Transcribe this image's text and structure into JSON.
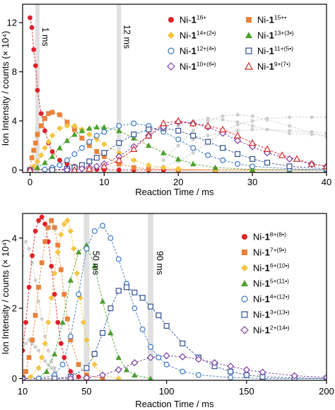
{
  "chart_data": [
    {
      "type": "scatter",
      "xlabel": "Reaction Time / ms",
      "ylabel": "Ion Intensity / counts (× 10⁴)",
      "xlim": [
        -1,
        40
      ],
      "ylim": [
        -0.2,
        13.5
      ],
      "xticks": [
        "0",
        "10",
        "20",
        "30",
        "40"
      ],
      "yticks": [
        "0",
        "4",
        "8",
        "12"
      ],
      "markers": [
        {
          "x": 1,
          "label": "1 ms"
        },
        {
          "x": 12,
          "label": "12 ms"
        }
      ],
      "legend_position": "top-right",
      "grey_series": {
        "name": "",
        "color": "#cfcfcf",
        "curves": [
          {
            "x": [
              16,
              18,
              20,
              22,
              24,
              26,
              28,
              30,
              32,
              35,
              38,
              40
            ],
            "y": [
              0.1,
              0.3,
              0.7,
              1.4,
              2.2,
              3.1,
              3.7,
              4.0,
              4.2,
              4.3,
              4.3,
              4.3
            ]
          },
          {
            "x": [
              18,
              20,
              22,
              24,
              26,
              28,
              30,
              32,
              35,
              38,
              40
            ],
            "y": [
              0.8,
              2.0,
              3.2,
              4.0,
              4.4,
              4.5,
              4.4,
              4.1,
              3.6,
              3.0,
              2.7
            ]
          },
          {
            "x": [
              20,
              22,
              24,
              26,
              28,
              30,
              32,
              35,
              38,
              40
            ],
            "y": [
              3.6,
              4.0,
              4.2,
              4.1,
              3.9,
              3.6,
              3.3,
              3.0,
              2.9,
              2.8
            ]
          },
          {
            "x": [
              22,
              24,
              26,
              28,
              30,
              32,
              35,
              38,
              40
            ],
            "y": [
              2.5,
              2.8,
              3.0,
              3.2,
              3.3,
              3.3,
              3.2,
              3.1,
              3.0
            ]
          }
        ]
      },
      "series": [
        {
          "name": "Ni-1",
          "charge": "16+",
          "color": "#e0202a",
          "marker": "circle",
          "filled": true,
          "x": [
            0,
            0.25,
            0.5,
            0.75,
            1,
            1.5,
            2,
            2.5,
            3,
            4,
            5,
            6,
            7,
            8,
            9,
            10,
            12,
            14,
            16,
            18,
            20,
            25,
            30,
            35,
            40
          ],
          "y": [
            12.4,
            11.6,
            9.8,
            8.5,
            6.5,
            4.6,
            3.2,
            2.2,
            1.5,
            0.8,
            0.5,
            0.3,
            0.2,
            0.1,
            0.05,
            0.03,
            0,
            0,
            0,
            0,
            0,
            0,
            0,
            0,
            0
          ]
        },
        {
          "name": "Ni-1",
          "charge": "15+•",
          "color": "#e8823c",
          "marker": "square",
          "filled": true,
          "x": [
            0,
            0.25,
            0.5,
            0.75,
            1,
            1.5,
            2,
            2.5,
            3,
            4,
            5,
            6,
            7,
            8,
            9,
            10,
            12,
            14,
            16,
            20,
            25,
            30,
            35,
            40
          ],
          "y": [
            0,
            1.0,
            1.6,
            2.2,
            2.9,
            3.6,
            4.2,
            4.6,
            4.7,
            4.5,
            3.9,
            3.3,
            2.6,
            2.0,
            1.5,
            1.1,
            0.5,
            0.2,
            0.1,
            0,
            0,
            0,
            0,
            0
          ]
        },
        {
          "name": "Ni-1",
          "charge": "14+(2•)",
          "color": "#f4c542",
          "marker": "diamond",
          "filled": true,
          "x": [
            0,
            0.5,
            1,
            1.5,
            2,
            2.5,
            3,
            4,
            5,
            6,
            7,
            8,
            9,
            10,
            12,
            14,
            16,
            18,
            20,
            25,
            30,
            35,
            40
          ],
          "y": [
            0,
            0.3,
            0.7,
            1.2,
            1.8,
            2.3,
            2.8,
            3.4,
            3.6,
            3.6,
            3.3,
            2.9,
            2.5,
            2.1,
            1.4,
            0.8,
            0.4,
            0.2,
            0.1,
            0,
            0,
            0,
            0
          ]
        },
        {
          "name": "Ni-1",
          "charge": "13+(3•)",
          "color": "#4ca02c",
          "marker": "triangle",
          "filled": true,
          "x": [
            0,
            1,
            2,
            3,
            4,
            5,
            6,
            7,
            8,
            9,
            10,
            12,
            14,
            16,
            18,
            20,
            22,
            25,
            30,
            35,
            40
          ],
          "y": [
            0,
            0.2,
            0.6,
            1.1,
            1.8,
            2.4,
            2.9,
            3.2,
            3.4,
            3.5,
            3.5,
            3.2,
            2.6,
            2.0,
            1.4,
            0.9,
            0.5,
            0.2,
            0.05,
            0,
            0
          ]
        },
        {
          "name": "Ni-1",
          "charge": "12+(4•)",
          "color": "#3a78c2",
          "marker": "circle",
          "filled": false,
          "x": [
            0,
            2,
            3,
            4,
            5,
            6,
            7,
            8,
            9,
            10,
            12,
            14,
            16,
            18,
            20,
            22,
            24,
            26,
            28,
            30,
            35,
            40
          ],
          "y": [
            0,
            0.05,
            0.2,
            0.4,
            0.8,
            1.3,
            1.8,
            2.3,
            2.8,
            3.1,
            3.6,
            3.8,
            3.6,
            3.1,
            2.5,
            1.8,
            1.2,
            0.8,
            0.5,
            0.3,
            0.1,
            0
          ]
        },
        {
          "name": "Ni-1",
          "charge": "11+(5•)",
          "color": "#2f4f8f",
          "marker": "square",
          "filled": false,
          "x": [
            0,
            3,
            5,
            6,
            7,
            8,
            9,
            10,
            12,
            14,
            16,
            18,
            20,
            22,
            24,
            26,
            28,
            30,
            32,
            35,
            40
          ],
          "y": [
            0,
            0,
            0.1,
            0.2,
            0.4,
            0.7,
            1.0,
            1.4,
            2.2,
            2.9,
            3.3,
            3.4,
            3.2,
            2.8,
            2.3,
            1.8,
            1.3,
            0.9,
            0.6,
            0.3,
            0.1
          ]
        },
        {
          "name": "Ni-1",
          "charge": "10+(6•)",
          "color": "#7b3fa0",
          "marker": "diamond",
          "filled": false,
          "x": [
            0,
            5,
            7,
            8,
            9,
            10,
            12,
            14,
            16,
            18,
            20,
            22,
            24,
            26,
            28,
            30,
            32,
            35,
            38,
            40
          ],
          "y": [
            0,
            0,
            0.1,
            0.2,
            0.3,
            0.5,
            1.1,
            1.9,
            2.8,
            3.5,
            3.9,
            3.8,
            3.5,
            3.0,
            2.4,
            1.9,
            1.4,
            0.9,
            0.5,
            0.3
          ]
        },
        {
          "name": "Ni-1",
          "charge": "9+(7•)",
          "color": "#d42a2a",
          "marker": "triangle",
          "filled": false,
          "x": [
            0,
            6,
            8,
            10,
            12,
            14,
            16,
            18,
            20,
            22,
            24,
            26,
            28,
            30,
            32,
            34,
            36,
            38,
            40
          ],
          "y": [
            0,
            0,
            0.1,
            0.3,
            0.8,
            1.7,
            2.8,
            3.8,
            4.0,
            3.8,
            3.6,
            3.3,
            2.8,
            2.2,
            1.7,
            1.2,
            0.9,
            0.5,
            0.3
          ]
        }
      ]
    },
    {
      "type": "scatter",
      "xlabel": "Reaction Time / ms",
      "ylabel": "Ion Intensity / counts (× 10⁴)",
      "xlim": [
        10,
        200
      ],
      "ylim": [
        -0.05,
        4.7
      ],
      "xticks": [
        "10",
        "50",
        "100",
        "150",
        "200"
      ],
      "yticks": [
        "0",
        "2",
        "4"
      ],
      "markers": [
        {
          "x": 50,
          "label": "50 ms"
        },
        {
          "x": 90,
          "label": "90 ms"
        }
      ],
      "legend_position": "top-right",
      "grey_series": {
        "name": "",
        "color": "#cfcfcf",
        "curves": [
          {
            "x": [
              10,
              12,
              14,
              16,
              18,
              20,
              22,
              24,
              26,
              28,
              30
            ],
            "y": [
              3.5,
              3.9,
              3.7,
              3.3,
              2.8,
              2.2,
              1.7,
              1.2,
              0.8,
              0.5,
              0.3
            ]
          },
          {
            "x": [
              10,
              12,
              14,
              16,
              18,
              20,
              22,
              24,
              26,
              28,
              30
            ],
            "y": [
              0.8,
              1.0,
              1.1,
              1.0,
              0.9,
              0.8,
              0.6,
              0.5,
              0.4,
              0.3,
              0.2
            ]
          }
        ]
      },
      "series": [
        {
          "name": "Ni-1",
          "charge": "8+(8•)",
          "color": "#e0202a",
          "marker": "circle",
          "filled": true,
          "x": [
            10,
            12,
            14,
            16,
            18,
            20,
            22,
            24,
            26,
            28,
            30,
            32,
            34,
            36,
            40,
            45,
            50
          ],
          "y": [
            0.8,
            1.6,
            2.6,
            3.5,
            4.2,
            4.5,
            4.6,
            4.4,
            3.9,
            3.2,
            2.4,
            1.6,
            1.0,
            0.6,
            0.2,
            0.05,
            0
          ]
        },
        {
          "name": "Ni-1",
          "charge": "7+(9•)",
          "color": "#e8823c",
          "marker": "square",
          "filled": true,
          "x": [
            10,
            12,
            14,
            16,
            18,
            20,
            22,
            24,
            26,
            28,
            30,
            32,
            34,
            36,
            38,
            40,
            45,
            50,
            60
          ],
          "y": [
            0.05,
            0.2,
            0.6,
            1.1,
            1.8,
            2.6,
            3.3,
            3.9,
            4.3,
            4.5,
            4.3,
            3.8,
            3.1,
            2.4,
            1.7,
            1.1,
            0.4,
            0.1,
            0
          ]
        },
        {
          "name": "Ni-1",
          "charge": "6+(10•)",
          "color": "#f4c542",
          "marker": "diamond",
          "filled": true,
          "x": [
            10,
            15,
            20,
            22,
            24,
            26,
            28,
            30,
            32,
            34,
            36,
            38,
            40,
            42,
            44,
            46,
            48,
            50,
            55,
            60,
            70
          ],
          "y": [
            0,
            0.05,
            0.3,
            0.6,
            1.0,
            1.6,
            2.3,
            3.0,
            3.6,
            4.1,
            4.4,
            4.5,
            4.2,
            3.7,
            3.0,
            2.3,
            1.6,
            1.1,
            0.4,
            0.1,
            0
          ]
        },
        {
          "name": "Ni-1",
          "charge": "5+(11•)",
          "color": "#4ca02c",
          "marker": "triangle",
          "filled": true,
          "x": [
            10,
            20,
            25,
            30,
            35,
            40,
            45,
            50,
            55,
            60,
            65,
            70,
            75,
            80,
            90
          ],
          "y": [
            0,
            0.02,
            0.2,
            0.7,
            1.6,
            2.8,
            3.6,
            3.8,
            3.2,
            2.2,
            1.3,
            0.6,
            0.25,
            0.1,
            0
          ]
        },
        {
          "name": "Ni-1",
          "charge": "4+(12•)",
          "color": "#3a78c2",
          "marker": "circle",
          "filled": false,
          "x": [
            10,
            20,
            30,
            35,
            40,
            45,
            50,
            55,
            60,
            65,
            70,
            75,
            80,
            85,
            90,
            95,
            100,
            110,
            120,
            140,
            160,
            180,
            200
          ],
          "y": [
            0,
            0,
            0.1,
            0.4,
            1.2,
            2.4,
            3.7,
            4.2,
            4.35,
            4.0,
            3.4,
            2.7,
            2.0,
            1.4,
            0.9,
            0.6,
            0.4,
            0.2,
            0.1,
            0.03,
            0,
            0,
            0
          ]
        },
        {
          "name": "Ni-1",
          "charge": "3+(13•)",
          "color": "#2f4f8f",
          "marker": "square",
          "filled": false,
          "x": [
            10,
            30,
            40,
            50,
            55,
            60,
            65,
            70,
            75,
            80,
            85,
            90,
            95,
            100,
            110,
            120,
            130,
            140,
            150,
            160,
            180,
            200
          ],
          "y": [
            0,
            0,
            0.05,
            0.3,
            0.7,
            1.3,
            2.0,
            2.5,
            2.6,
            2.45,
            2.3,
            2.05,
            1.8,
            1.5,
            1.0,
            0.6,
            0.35,
            0.2,
            0.1,
            0.05,
            0.02,
            0
          ]
        },
        {
          "name": "Ni-1",
          "charge": "2+(14•)",
          "color": "#7b3fa0",
          "marker": "diamond",
          "filled": false,
          "x": [
            10,
            40,
            50,
            60,
            70,
            80,
            90,
            100,
            110,
            120,
            130,
            140,
            150,
            160,
            180,
            200
          ],
          "y": [
            0,
            0,
            0.02,
            0.1,
            0.25,
            0.45,
            0.6,
            0.65,
            0.62,
            0.55,
            0.45,
            0.35,
            0.25,
            0.18,
            0.08,
            0.03
          ]
        }
      ]
    }
  ]
}
